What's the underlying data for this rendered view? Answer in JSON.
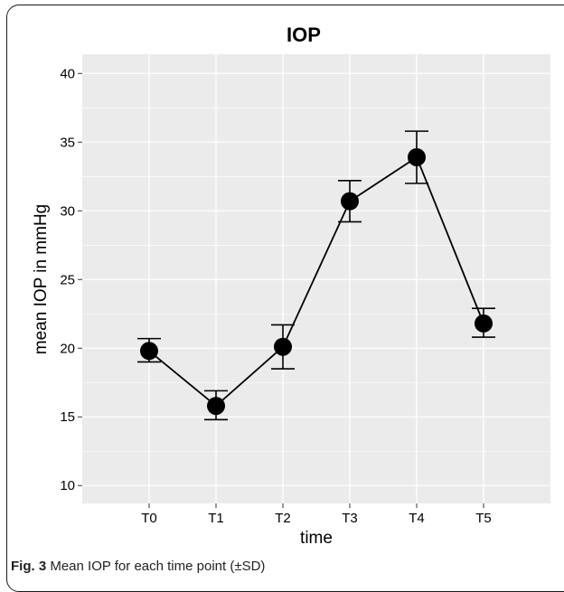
{
  "chart_data": {
    "type": "line",
    "title": "IOP",
    "xlabel": "time",
    "ylabel": "mean IOP in mmHg",
    "categories": [
      "T0",
      "T1",
      "T2",
      "T3",
      "T4",
      "T5"
    ],
    "series": [
      {
        "values": [
          19.8,
          15.8,
          20.1,
          30.7,
          33.9,
          21.8
        ],
        "error_low": [
          19.0,
          14.8,
          18.5,
          29.2,
          32.0,
          20.8
        ],
        "error_high": [
          20.7,
          16.9,
          21.7,
          32.2,
          35.8,
          22.9
        ]
      }
    ],
    "yticks": [
      10,
      15,
      20,
      25,
      30,
      35,
      40
    ],
    "ylim": [
      8.7,
      41.4
    ],
    "grid": true,
    "colors": {
      "panel": "#ebebeb",
      "grid": "#ffffff",
      "line": "#000000",
      "point": "#000000"
    }
  },
  "caption": {
    "label": "Fig. 3",
    "text": "Mean IOP for each time point (±SD)"
  }
}
